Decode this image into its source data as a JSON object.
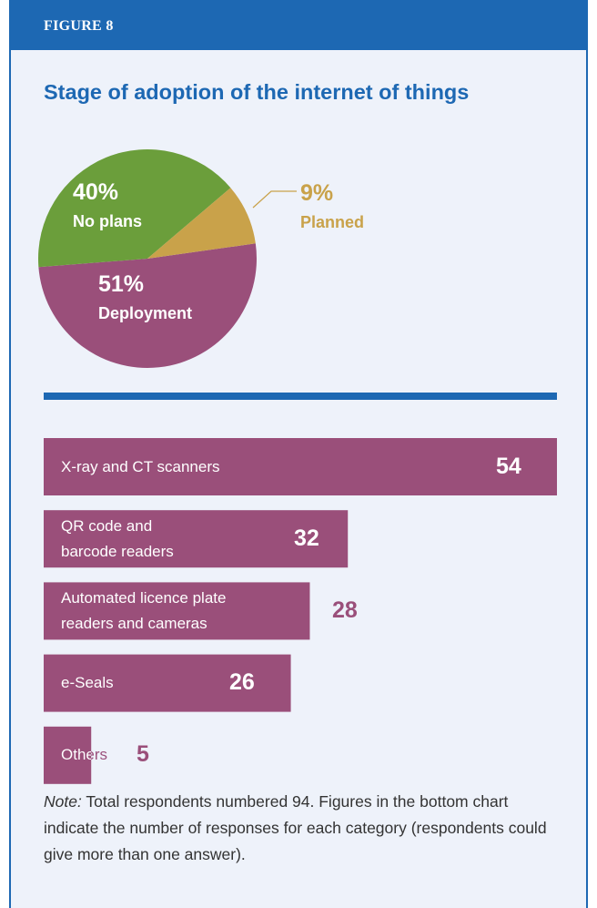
{
  "chart_data": [
    {
      "type": "pie",
      "title": "Stage of adoption of the internet of things",
      "categories": [
        "Deployment",
        "No plans",
        "Planned"
      ],
      "values": [
        51,
        40,
        9
      ],
      "value_labels": [
        "51%",
        "40%",
        "9%"
      ],
      "colors": [
        "#9a4f7a",
        "#6b9e3b",
        "#c9a24a"
      ]
    },
    {
      "type": "hbar",
      "categories": [
        "X-ray and CT scanners",
        "QR code and barcode readers",
        "Automated licence plate readers and cameras",
        "e-Seals",
        "Others"
      ],
      "values": [
        54,
        32,
        28,
        26,
        5
      ],
      "color": "#9a4f7a",
      "xlim": [
        0,
        54
      ]
    }
  ],
  "header": {
    "figure": "FIGURE 8"
  },
  "note": {
    "label": "Note:",
    "text": "Total respondents numbered 94. Figures in the bottom chart indicate the number of responses for each category (respondents could give more than one answer)."
  }
}
